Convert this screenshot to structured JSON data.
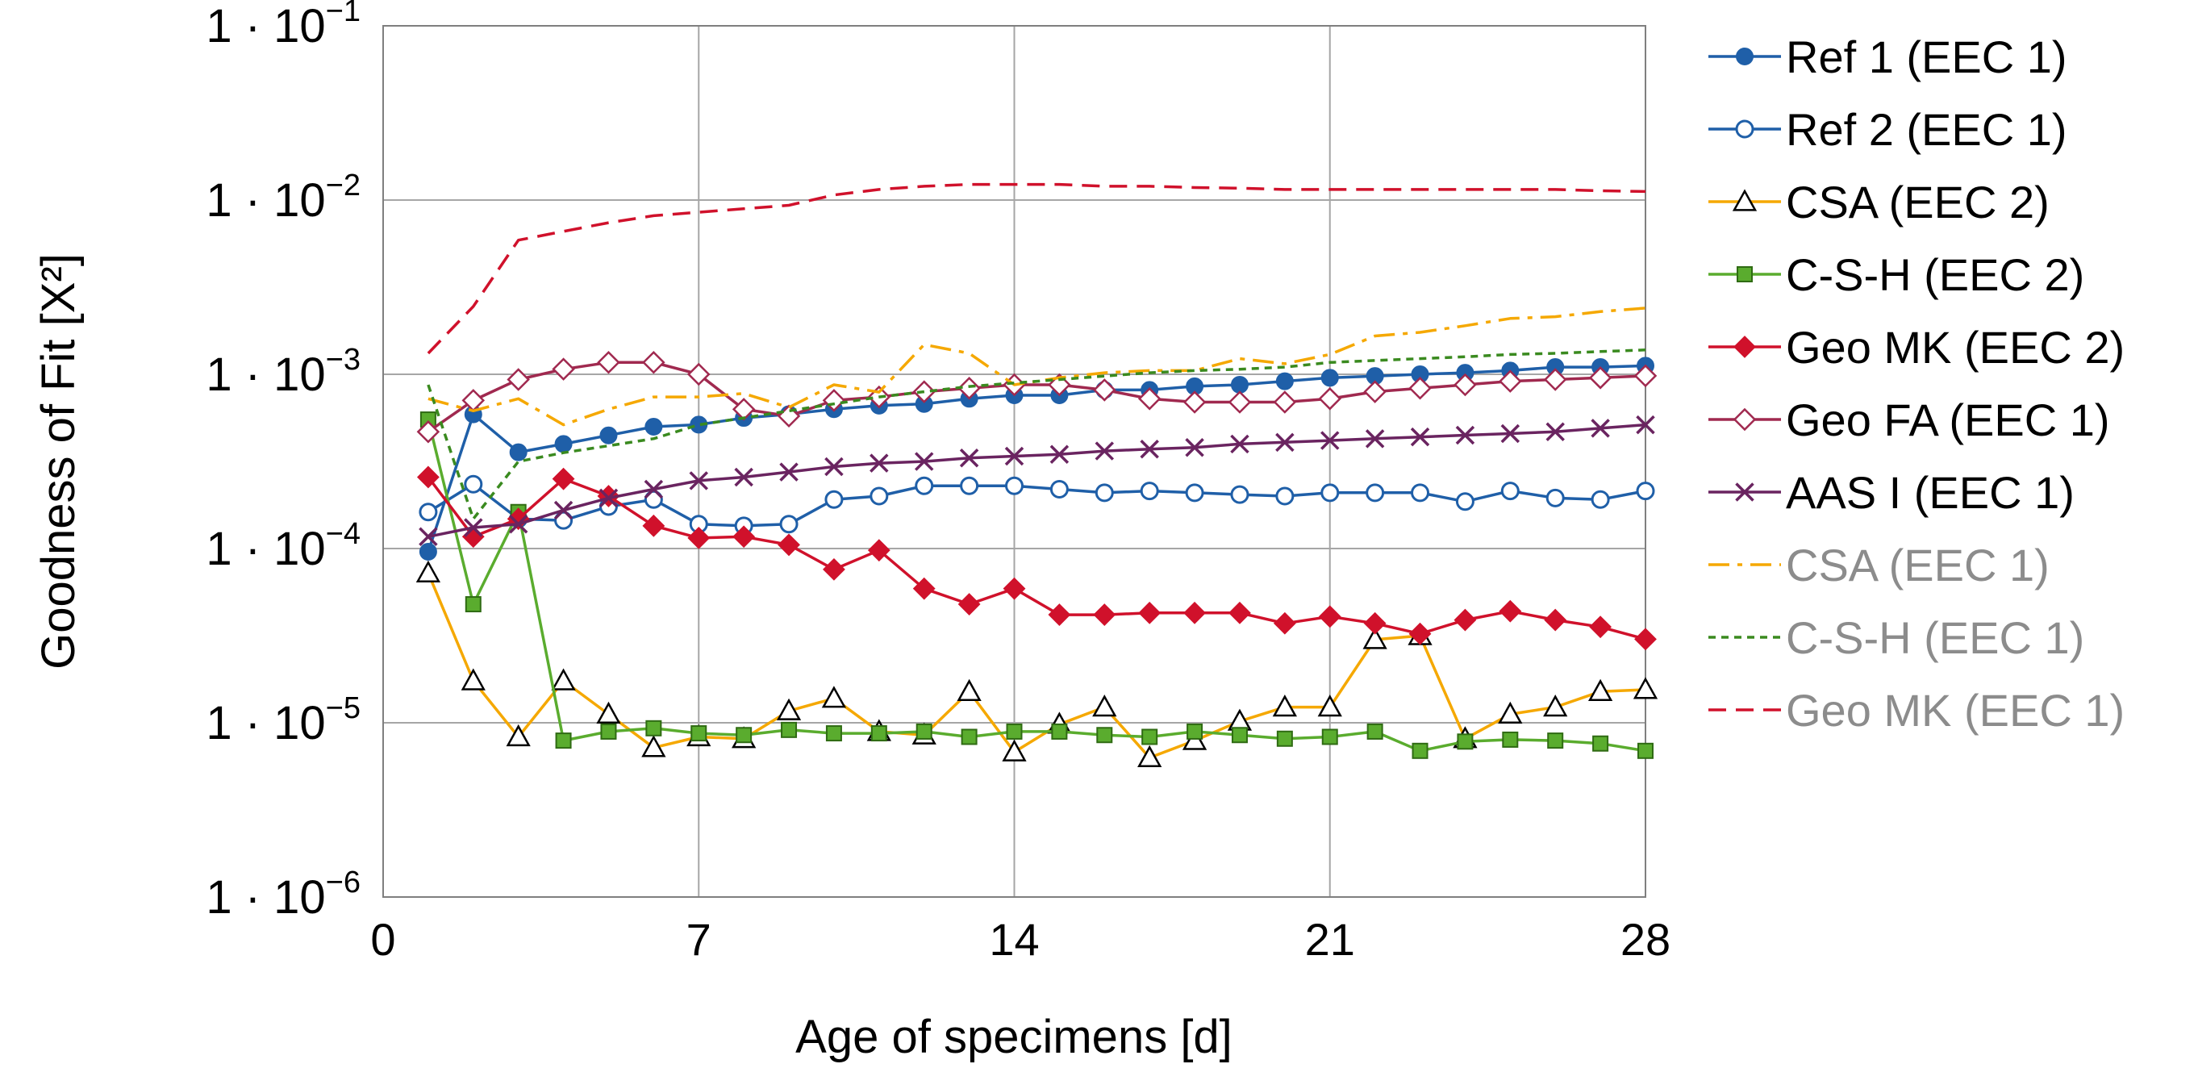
{
  "chart_data": {
    "type": "line",
    "title": "",
    "xlabel": "Age of specimens [d]",
    "ylabel": "Goodness of Fit [X²]",
    "y_scale": "log",
    "xlim": [
      0,
      28
    ],
    "ylim": [
      1e-06,
      0.1
    ],
    "x_ticks": [
      0,
      7,
      14,
      21,
      28
    ],
    "x_tick_labels": [
      "0",
      "7",
      "14",
      "21",
      "28"
    ],
    "y_ticks": [
      1e-06,
      1e-05,
      0.0001,
      0.001,
      0.01,
      0.1
    ],
    "y_tick_labels": [
      {
        "mantissa": "1 · 10",
        "exp": "−6"
      },
      {
        "mantissa": "1 · 10",
        "exp": "−5"
      },
      {
        "mantissa": "1 · 10",
        "exp": "−4"
      },
      {
        "mantissa": "1 · 10",
        "exp": "−3"
      },
      {
        "mantissa": "1 · 10",
        "exp": "−2"
      },
      {
        "mantissa": "1 · 10",
        "exp": "−1"
      }
    ],
    "grid": true,
    "legend_position": "right",
    "x": [
      1,
      2,
      3,
      4,
      5,
      6,
      7,
      8,
      9,
      10,
      11,
      12,
      13,
      14,
      15,
      16,
      17,
      18,
      19,
      20,
      21,
      22,
      23,
      24,
      25,
      26,
      27,
      28
    ],
    "series": [
      {
        "name": "Ref 1 (EEC 1)",
        "color": "#1f5fa8",
        "dash": "solid",
        "marker": "circle-filled",
        "legend_text_color": "#000000",
        "values": [
          9.58e-05,
          0.000589,
          0.000357,
          0.000398,
          0.000446,
          0.0005,
          0.000514,
          0.000562,
          0.00059,
          0.000631,
          0.000661,
          0.000676,
          0.000724,
          0.000758,
          0.000758,
          0.000813,
          0.000813,
          0.000853,
          0.000871,
          0.000912,
          0.000955,
          0.000977,
          0.001,
          0.00102,
          0.00105,
          0.0011,
          0.0011,
          0.00112
        ]
      },
      {
        "name": "Ref 2 (EEC 1)",
        "color": "#1f5fa8",
        "dash": "solid",
        "marker": "circle-open",
        "legend_text_color": "#000000",
        "values": [
          0.000162,
          0.000234,
          0.000148,
          0.000145,
          0.000174,
          0.000191,
          0.000138,
          0.000135,
          0.000138,
          0.000191,
          0.0002,
          0.000229,
          0.000229,
          0.000229,
          0.000219,
          0.000209,
          0.000214,
          0.000209,
          0.000204,
          0.0002,
          0.000209,
          0.000209,
          0.000209,
          0.000186,
          0.000214,
          0.000195,
          0.000191,
          0.000214
        ]
      },
      {
        "name": "CSA (EEC 2)",
        "color": "#f5a800",
        "dash": "solid",
        "marker": "triangle-open",
        "legend_text_color": "#000000",
        "values": [
          7.24e-05,
          1.74e-05,
          8.3e-06,
          1.74e-05,
          1.12e-05,
          7.2e-06,
          8.3e-06,
          8.1e-06,
          1.17e-05,
          1.38e-05,
          8.9e-06,
          8.5e-06,
          1.51e-05,
          6.8e-06,
          9.8e-06,
          1.23e-05,
          6.3e-06,
          7.9e-06,
          1.02e-05,
          1.23e-05,
          1.23e-05,
          3e-05,
          3.16e-05,
          8.1e-06,
          1.12e-05,
          1.23e-05,
          1.51e-05,
          1.55e-05
        ]
      },
      {
        "name": "C-S-H (EEC 2)",
        "color": "#5aac2e",
        "dash": "solid",
        "marker": "square-filled",
        "legend_text_color": "#000000",
        "values": [
          0.00055,
          4.79e-05,
          0.000162,
          7.9e-06,
          8.9e-06,
          9.3e-06,
          8.7e-06,
          8.5e-06,
          9.1e-06,
          8.7e-06,
          8.7e-06,
          8.9e-06,
          8.3e-06,
          8.9e-06,
          8.9e-06,
          8.5e-06,
          8.3e-06,
          8.9e-06,
          8.5e-06,
          8.1e-06,
          8.3e-06,
          8.9e-06,
          6.9e-06,
          7.8e-06,
          8e-06,
          7.9e-06,
          7.6e-06,
          6.9e-06
        ]
      },
      {
        "name": "Geo MK (EEC 2)",
        "color": "#d0112b",
        "dash": "solid",
        "marker": "diamond-filled",
        "legend_text_color": "#000000",
        "values": [
          0.000257,
          0.000117,
          0.000148,
          0.000251,
          0.0002,
          0.000135,
          0.000115,
          0.000117,
          0.000105,
          7.59e-05,
          9.77e-05,
          5.89e-05,
          4.79e-05,
          5.89e-05,
          4.17e-05,
          4.17e-05,
          4.27e-05,
          4.27e-05,
          4.27e-05,
          3.72e-05,
          4.07e-05,
          3.72e-05,
          3.24e-05,
          3.89e-05,
          4.37e-05,
          3.89e-05,
          3.55e-05,
          3.02e-05
        ]
      },
      {
        "name": "Geo FA (EEC 1)",
        "color": "#a0294f",
        "dash": "solid",
        "marker": "diamond-open",
        "legend_text_color": "#000000",
        "values": [
          0.000468,
          0.000708,
          0.000933,
          0.00107,
          0.00117,
          0.00117,
          0.001,
          0.00063,
          0.000576,
          0.000708,
          0.000741,
          0.000794,
          0.000832,
          0.000871,
          0.000871,
          0.000813,
          0.000724,
          0.000692,
          0.000692,
          0.000692,
          0.000724,
          0.000794,
          0.000832,
          0.000871,
          0.000912,
          0.000933,
          0.000955,
          0.00098
        ]
      },
      {
        "name": "AAS I (EEC 1)",
        "color": "#6a2460",
        "dash": "solid",
        "marker": "x",
        "legend_text_color": "#000000",
        "values": [
          0.000117,
          0.000132,
          0.000138,
          0.000166,
          0.000195,
          0.000219,
          0.000245,
          0.000257,
          0.000275,
          0.000295,
          0.000309,
          0.000316,
          0.000331,
          0.000339,
          0.000347,
          0.000363,
          0.000372,
          0.00038,
          0.000398,
          0.000407,
          0.000417,
          0.000427,
          0.000437,
          0.000447,
          0.000457,
          0.000468,
          0.00049,
          0.000513
        ]
      },
      {
        "name": "CSA (EEC 1)",
        "color": "#f5a800",
        "dash": "dashdot",
        "marker": "none",
        "legend_text_color": "#8c8c8c",
        "values": [
          0.000724,
          0.000617,
          0.000724,
          0.000513,
          0.00063,
          0.000741,
          0.000741,
          0.000776,
          0.000646,
          0.000871,
          0.00079,
          0.00148,
          0.00132,
          0.000871,
          0.000955,
          0.00102,
          0.00105,
          0.00105,
          0.00123,
          0.00115,
          0.0013,
          0.00166,
          0.00174,
          0.0019,
          0.00209,
          0.00214,
          0.00229,
          0.0024
        ]
      },
      {
        "name": "C-S-H (EEC 1)",
        "color": "#3a8a1f",
        "dash": "dotted",
        "marker": "none",
        "legend_text_color": "#8c8c8c",
        "values": [
          0.000871,
          0.000148,
          0.000316,
          0.000355,
          0.000389,
          0.000427,
          0.000513,
          0.000562,
          0.000617,
          0.000676,
          0.000741,
          0.000794,
          0.000851,
          0.000891,
          0.000933,
          0.000977,
          0.00102,
          0.00105,
          0.00107,
          0.0011,
          0.00117,
          0.0012,
          0.00123,
          0.00126,
          0.0013,
          0.00132,
          0.00135,
          0.00138
        ]
      },
      {
        "name": "Geo MK (EEC 1)",
        "color": "#d0112b",
        "dash": "dashed",
        "marker": "none",
        "legend_text_color": "#8c8c8c",
        "values": [
          0.00132,
          0.00245,
          0.00589,
          0.00661,
          0.00741,
          0.00813,
          0.00851,
          0.00891,
          0.00933,
          0.0107,
          0.0115,
          0.012,
          0.0123,
          0.0123,
          0.0123,
          0.012,
          0.012,
          0.0118,
          0.0117,
          0.0115,
          0.0115,
          0.0115,
          0.0115,
          0.0115,
          0.0115,
          0.0115,
          0.0113,
          0.0112
        ]
      }
    ]
  }
}
